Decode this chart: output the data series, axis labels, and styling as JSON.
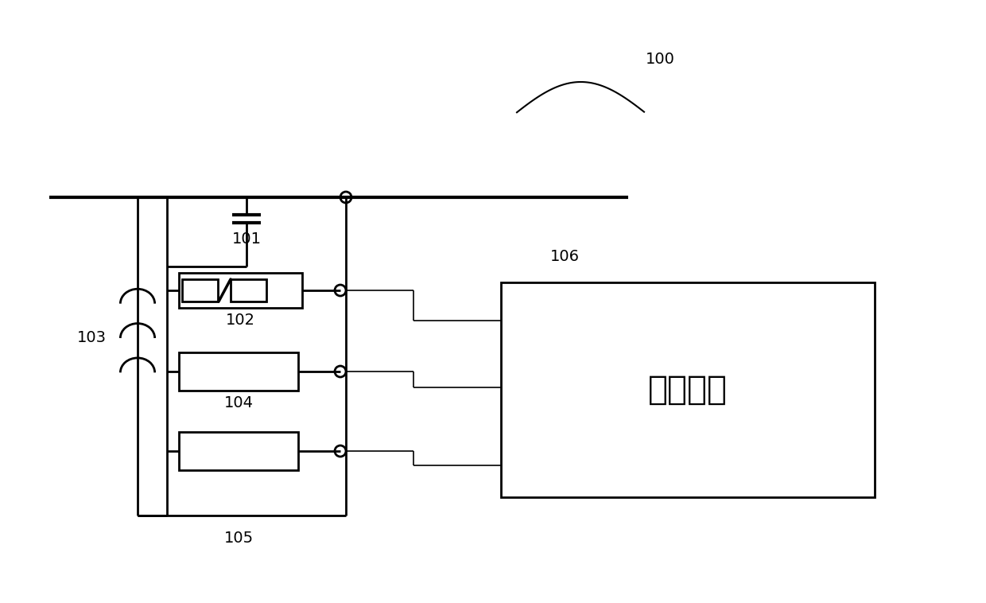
{
  "bg_color": "#ffffff",
  "line_color": "#000000",
  "bus_lw": 3.0,
  "comp_lw": 2.0,
  "wire_lw": 1.2,
  "label_100": "100",
  "label_101": "101",
  "label_102": "102",
  "label_103": "103",
  "label_104": "104",
  "label_105": "105",
  "label_106": "106",
  "label_control": "控制单元",
  "font_size_labels": 14,
  "font_size_control": 30
}
